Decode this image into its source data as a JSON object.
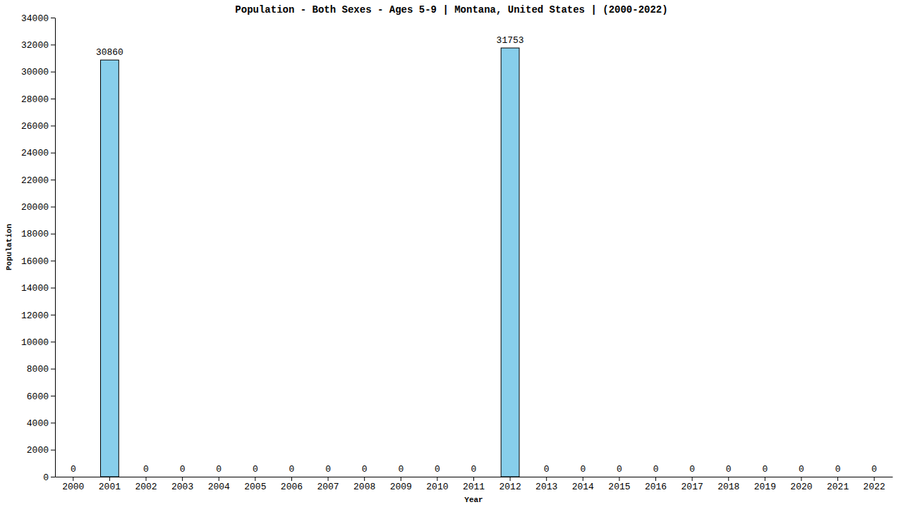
{
  "chart_data": {
    "type": "bar",
    "title": "Population - Both Sexes - Ages 5-9 | Montana, United States |  (2000-2022)",
    "x_label": "Year",
    "y_label": "Population",
    "categories": [
      "2000",
      "2001",
      "2002",
      "2003",
      "2004",
      "2005",
      "2006",
      "2007",
      "2008",
      "2009",
      "2010",
      "2011",
      "2012",
      "2013",
      "2014",
      "2015",
      "2016",
      "2017",
      "2018",
      "2019",
      "2020",
      "2021",
      "2022"
    ],
    "values": [
      0,
      30860,
      0,
      0,
      0,
      0,
      0,
      0,
      0,
      0,
      0,
      0,
      31753,
      0,
      0,
      0,
      0,
      0,
      0,
      0,
      0,
      0,
      0
    ],
    "color": "#87ceeb",
    "ylim": [
      0,
      34000
    ],
    "yticks": [
      0,
      2000,
      4000,
      6000,
      8000,
      10000,
      12000,
      14000,
      16000,
      18000,
      20000,
      22000,
      24000,
      26000,
      28000,
      30000,
      32000,
      34000
    ],
    "grid": false,
    "data_labels": true
  }
}
